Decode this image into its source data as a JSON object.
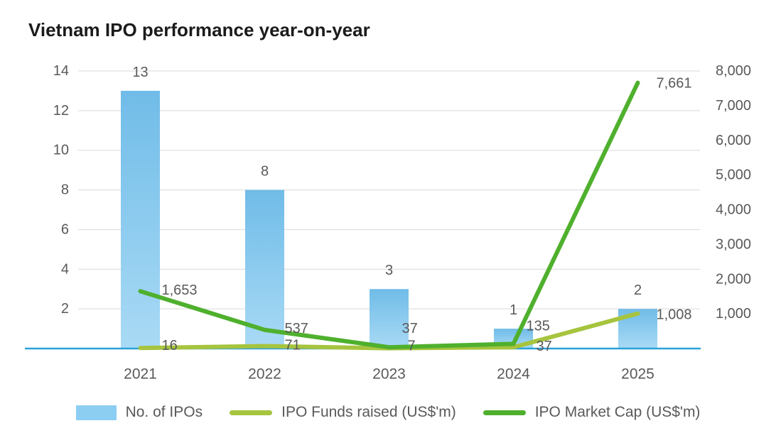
{
  "chart_data": {
    "type": "combo",
    "title": "Vietnam IPO performance year-on-year",
    "categories": [
      "2021",
      "2022",
      "2023",
      "2024",
      "2025"
    ],
    "series": [
      {
        "name": "No. of IPOs",
        "type": "bar",
        "axis": "left",
        "values": [
          13,
          8,
          3,
          1,
          2
        ],
        "labels": [
          "13",
          "8",
          "3",
          "1",
          "2"
        ],
        "color": "#8ccdf2"
      },
      {
        "name": "IPO Funds raised (US$'m)",
        "type": "line",
        "axis": "right",
        "values": [
          16,
          71,
          7,
          37,
          1008
        ],
        "labels": [
          "16",
          "71",
          "7",
          "37",
          "1,008"
        ],
        "color": "#a6c43e"
      },
      {
        "name": "IPO Market Cap (US$'m)",
        "type": "line",
        "axis": "right",
        "values": [
          1653,
          537,
          37,
          135,
          7661
        ],
        "labels": [
          "1,653",
          "537",
          "37",
          "135",
          "7,661"
        ],
        "color": "#4fb02d"
      }
    ],
    "left_axis": {
      "min": 0,
      "max": 14,
      "ticks": [
        "2",
        "4",
        "6",
        "8",
        "10",
        "12",
        "14"
      ]
    },
    "right_axis": {
      "min": 0,
      "max": 8000,
      "ticks": [
        "1,000",
        "2,000",
        "3,000",
        "4,000",
        "5,000",
        "6,000",
        "7,000",
        "8,000"
      ]
    },
    "colors": {
      "axis_line": "#2ba1d8",
      "gridline": "#d9d9d9",
      "text": "#595959",
      "title": "#1b1b1b",
      "bar_top": "#70bce8",
      "bar_bottom": "#a9daf5"
    },
    "legend_position": "bottom",
    "grid": "horizontal"
  }
}
